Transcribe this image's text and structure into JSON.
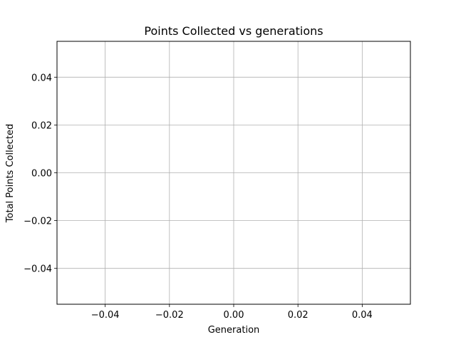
{
  "chart_data": {
    "type": "line",
    "title": "Points Collected vs generations",
    "xlabel": "Generation",
    "ylabel": "Total Points Collected",
    "xlim": [
      -0.055,
      0.055
    ],
    "ylim": [
      -0.055,
      0.055
    ],
    "x_ticks": [
      -0.04,
      -0.02,
      0.0,
      0.02,
      0.04
    ],
    "x_tick_labels": [
      "−0.04",
      "−0.02",
      "0.00",
      "0.02",
      "0.04"
    ],
    "y_ticks": [
      -0.04,
      -0.02,
      0.0,
      0.02,
      0.04
    ],
    "y_tick_labels": [
      "−0.04",
      "−0.02",
      "0.00",
      "0.02",
      "0.04"
    ],
    "grid": true,
    "series": [
      {
        "x": [],
        "y": []
      }
    ]
  },
  "colors": {
    "grid": "#b0b0b0",
    "axes": "#000000",
    "background": "#ffffff",
    "line": "#1f77b4"
  }
}
